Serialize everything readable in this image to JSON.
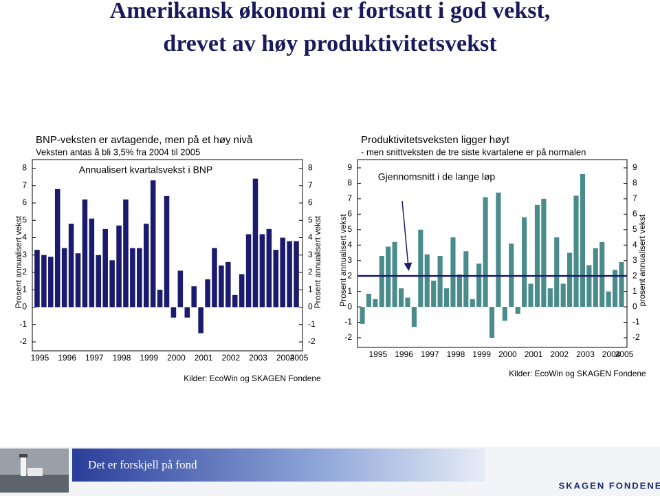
{
  "title_lines": [
    "Amerikansk økonomi er fortsatt i god vekst,",
    "drevet av høy produktivitetsvekst"
  ],
  "chart_data": [
    {
      "type": "bar",
      "title": "BNP-veksten er avtagende, men på et høy nivå",
      "subtitle": "Veksten antas å bli 3,5% fra 2004 til 2005",
      "categories": [
        "1995",
        null,
        null,
        null,
        "1996",
        null,
        null,
        null,
        "1997",
        null,
        null,
        null,
        "1998",
        null,
        null,
        null,
        "1999",
        null,
        null,
        null,
        "2000",
        null,
        null,
        null,
        "2001",
        null,
        null,
        null,
        "2002",
        null,
        null,
        null,
        "2003",
        null,
        null,
        null,
        "2004",
        null,
        "2005"
      ],
      "series": [
        {
          "name": "Annualisert kvartalsvekst i BNP",
          "color": "#1a1a6e",
          "values": [
            3.3,
            3.0,
            2.9,
            6.8,
            3.4,
            4.8,
            3.1,
            6.2,
            5.1,
            3.0,
            4.5,
            2.7,
            4.7,
            6.2,
            3.4,
            3.4,
            4.8,
            7.3,
            1.0,
            6.4,
            -0.6,
            2.1,
            -0.6,
            1.2,
            -1.5,
            1.6,
            3.4,
            2.4,
            2.6,
            0.7,
            1.9,
            4.2,
            7.4,
            4.2,
            4.5,
            3.3,
            4.0,
            3.8,
            3.8
          ]
        }
      ],
      "ylim": [
        -2,
        8
      ],
      "yticks": [
        -2,
        -1,
        0,
        1,
        2,
        3,
        4,
        5,
        6,
        7,
        8
      ],
      "ylabel": "Prosent annualisert vekst",
      "ylabel_right": "Prosent annualisert vekst",
      "source": "Kilder: EcoWin og SKAGEN Fondene"
    },
    {
      "type": "bar",
      "title": "Produktivitetsveksten ligger høyt",
      "subtitle": "- men snittveksten de tre siste kvartalene er på normalen",
      "categories": [
        null,
        null,
        "1995",
        null,
        null,
        null,
        "1996",
        null,
        null,
        null,
        "1997",
        null,
        null,
        null,
        "1998",
        null,
        null,
        null,
        "1999",
        null,
        null,
        null,
        "2000",
        null,
        null,
        null,
        "2001",
        null,
        null,
        null,
        "2002",
        null,
        null,
        null,
        "2003",
        null,
        null,
        null,
        "2004",
        null,
        "2005"
      ],
      "series": [
        {
          "color": "#4a8c8c",
          "values": [
            -1.1,
            0.85,
            0.5,
            3.3,
            3.9,
            4.2,
            1.2,
            0.6,
            -1.3,
            5.0,
            3.4,
            1.7,
            3.3,
            1.2,
            4.5,
            2.1,
            3.6,
            0.5,
            2.8,
            7.1,
            -2.0,
            7.4,
            -0.9,
            4.1,
            -0.45,
            5.8,
            1.5,
            6.6,
            7.0,
            1.2,
            4.5,
            1.5,
            3.5,
            7.2,
            8.6,
            2.7,
            3.8,
            4.2,
            1.0,
            2.4,
            2.9
          ]
        }
      ],
      "reference_line": {
        "value": 2,
        "label": "Gjennomsnitt i de lange løp"
      },
      "ylim": [
        -2,
        9
      ],
      "yticks": [
        -2,
        -1,
        0,
        1,
        2,
        3,
        4,
        5,
        6,
        7,
        8,
        9
      ],
      "ylabel": "Prosent annualisert vekst",
      "ylabel_right": "prosent annualisert vekst",
      "source": "Kilder: EcoWin og SKAGEN Fondene"
    }
  ],
  "footer": {
    "text": "Det er forskjell på fond",
    "logo": "SKAGEN FONDENE"
  }
}
